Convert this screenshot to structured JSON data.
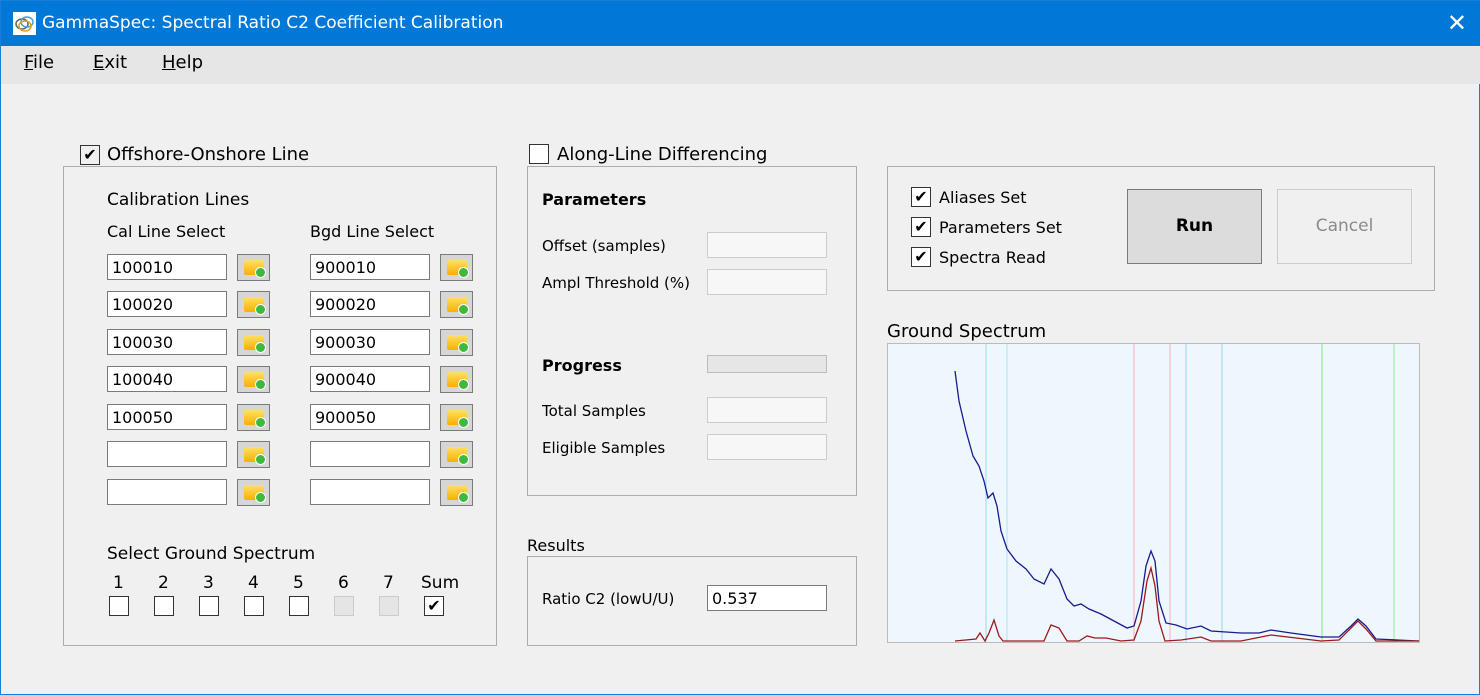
{
  "window": {
    "title": "GammaSpec:  Spectral Ratio C2 Coefficient Calibration",
    "close_icon": "close-icon",
    "app_icon": "rings-logo-icon"
  },
  "menu": [
    {
      "label": "File",
      "accel": "F",
      "rest": "ile"
    },
    {
      "label": "Exit",
      "accel": "E",
      "rest": "xit"
    },
    {
      "label": "Help",
      "accel": "H",
      "rest": "elp"
    }
  ],
  "offshore": {
    "label": "Offshore-Onshore Line",
    "checked": true,
    "calibration_lines": "Calibration Lines",
    "cal_header": "Cal Line Select",
    "bgd_header": "Bgd Line Select",
    "cal_lines": [
      "100010",
      "100020",
      "100030",
      "100040",
      "100050",
      "",
      ""
    ],
    "bgd_lines": [
      "900010",
      "900020",
      "900030",
      "900040",
      "900050",
      "",
      ""
    ],
    "ground_title": "Select Ground Spectrum",
    "ground": [
      {
        "label": "1",
        "checked": false,
        "enabled": true
      },
      {
        "label": "2",
        "checked": false,
        "enabled": true
      },
      {
        "label": "3",
        "checked": false,
        "enabled": true
      },
      {
        "label": "4",
        "checked": false,
        "enabled": true
      },
      {
        "label": "5",
        "checked": false,
        "enabled": true
      },
      {
        "label": "6",
        "checked": false,
        "enabled": false
      },
      {
        "label": "7",
        "checked": false,
        "enabled": false
      },
      {
        "label": "Sum",
        "checked": true,
        "enabled": true
      }
    ]
  },
  "along": {
    "label": "Along-Line Differencing",
    "checked": false,
    "parameters": "Parameters",
    "offset": "Offset (samples)",
    "ampl": "Ampl Threshold (%)",
    "progress": "Progress",
    "progress_value": 0,
    "total": "Total Samples",
    "eligible": "Eligible Samples"
  },
  "results": {
    "title": "Results",
    "ratio_label": "Ratio C2 (lowU/U)",
    "ratio_value": "0.537"
  },
  "status": {
    "items": [
      {
        "label": "Aliases Set",
        "checked": true
      },
      {
        "label": "Parameters Set",
        "checked": true
      },
      {
        "label": "Spectra Read",
        "checked": true
      }
    ],
    "run": "Run",
    "cancel": "Cancel"
  },
  "spectrum_title": "Ground Spectrum",
  "chart_data": {
    "type": "line",
    "xlim": [
      0,
      532
    ],
    "ylim": [
      0,
      299
    ],
    "grid": false,
    "background": "#eef7fe",
    "markers": [
      {
        "x": 99,
        "color": "#a8e0ea"
      },
      {
        "x": 120,
        "color": "#b8e6f0"
      },
      {
        "x": 247,
        "color": "#f8b8c0"
      },
      {
        "x": 283,
        "color": "#f8b8c0"
      },
      {
        "x": 299,
        "color": "#a8d8f8"
      },
      {
        "x": 335,
        "color": "#a8d8f8"
      },
      {
        "x": 435,
        "color": "#90f090"
      },
      {
        "x": 507,
        "color": "#a0f0a0"
      }
    ],
    "series": [
      {
        "color": "#1a1a8c",
        "points": [
          [
            68,
            271
          ],
          [
            72,
            241
          ],
          [
            79,
            211
          ],
          [
            86,
            186
          ],
          [
            92,
            176
          ],
          [
            97,
            161
          ],
          [
            101,
            144
          ],
          [
            106,
            149
          ],
          [
            110,
            136
          ],
          [
            114,
            111
          ],
          [
            120,
            93
          ],
          [
            129,
            81
          ],
          [
            139,
            73
          ],
          [
            147,
            63
          ],
          [
            157,
            58
          ],
          [
            164,
            73
          ],
          [
            172,
            63
          ],
          [
            180,
            43
          ],
          [
            187,
            36
          ],
          [
            194,
            38
          ],
          [
            202,
            33
          ],
          [
            214,
            28
          ],
          [
            227,
            21
          ],
          [
            240,
            14
          ],
          [
            247,
            16
          ],
          [
            254,
            41
          ],
          [
            259,
            76
          ],
          [
            264,
            91
          ],
          [
            268,
            81
          ],
          [
            272,
            41
          ],
          [
            279,
            19
          ],
          [
            289,
            17
          ],
          [
            300,
            13
          ],
          [
            314,
            16
          ],
          [
            324,
            11
          ],
          [
            354,
            9
          ],
          [
            372,
            9
          ],
          [
            384,
            12
          ],
          [
            404,
            9
          ],
          [
            434,
            5
          ],
          [
            452,
            5
          ],
          [
            464,
            16
          ],
          [
            471,
            23
          ],
          [
            479,
            16
          ],
          [
            489,
            3
          ],
          [
            532,
            1
          ]
        ]
      },
      {
        "color": "#9c1a1a",
        "points": [
          [
            68,
            1
          ],
          [
            89,
            3
          ],
          [
            93,
            9
          ],
          [
            98,
            1
          ],
          [
            102,
            9
          ],
          [
            107,
            22
          ],
          [
            112,
            6
          ],
          [
            116,
            1
          ],
          [
            130,
            1
          ],
          [
            157,
            1
          ],
          [
            164,
            17
          ],
          [
            172,
            14
          ],
          [
            180,
            1
          ],
          [
            192,
            1
          ],
          [
            200,
            6
          ],
          [
            208,
            4
          ],
          [
            219,
            4
          ],
          [
            234,
            1
          ],
          [
            247,
            2
          ],
          [
            254,
            21
          ],
          [
            260,
            61
          ],
          [
            264,
            74
          ],
          [
            268,
            56
          ],
          [
            272,
            21
          ],
          [
            278,
            1
          ],
          [
            294,
            2
          ],
          [
            314,
            5
          ],
          [
            324,
            1
          ],
          [
            354,
            1
          ],
          [
            384,
            7
          ],
          [
            434,
            1
          ],
          [
            452,
            2
          ],
          [
            464,
            14
          ],
          [
            471,
            21
          ],
          [
            479,
            13
          ],
          [
            489,
            1
          ],
          [
            532,
            1
          ]
        ]
      }
    ]
  }
}
